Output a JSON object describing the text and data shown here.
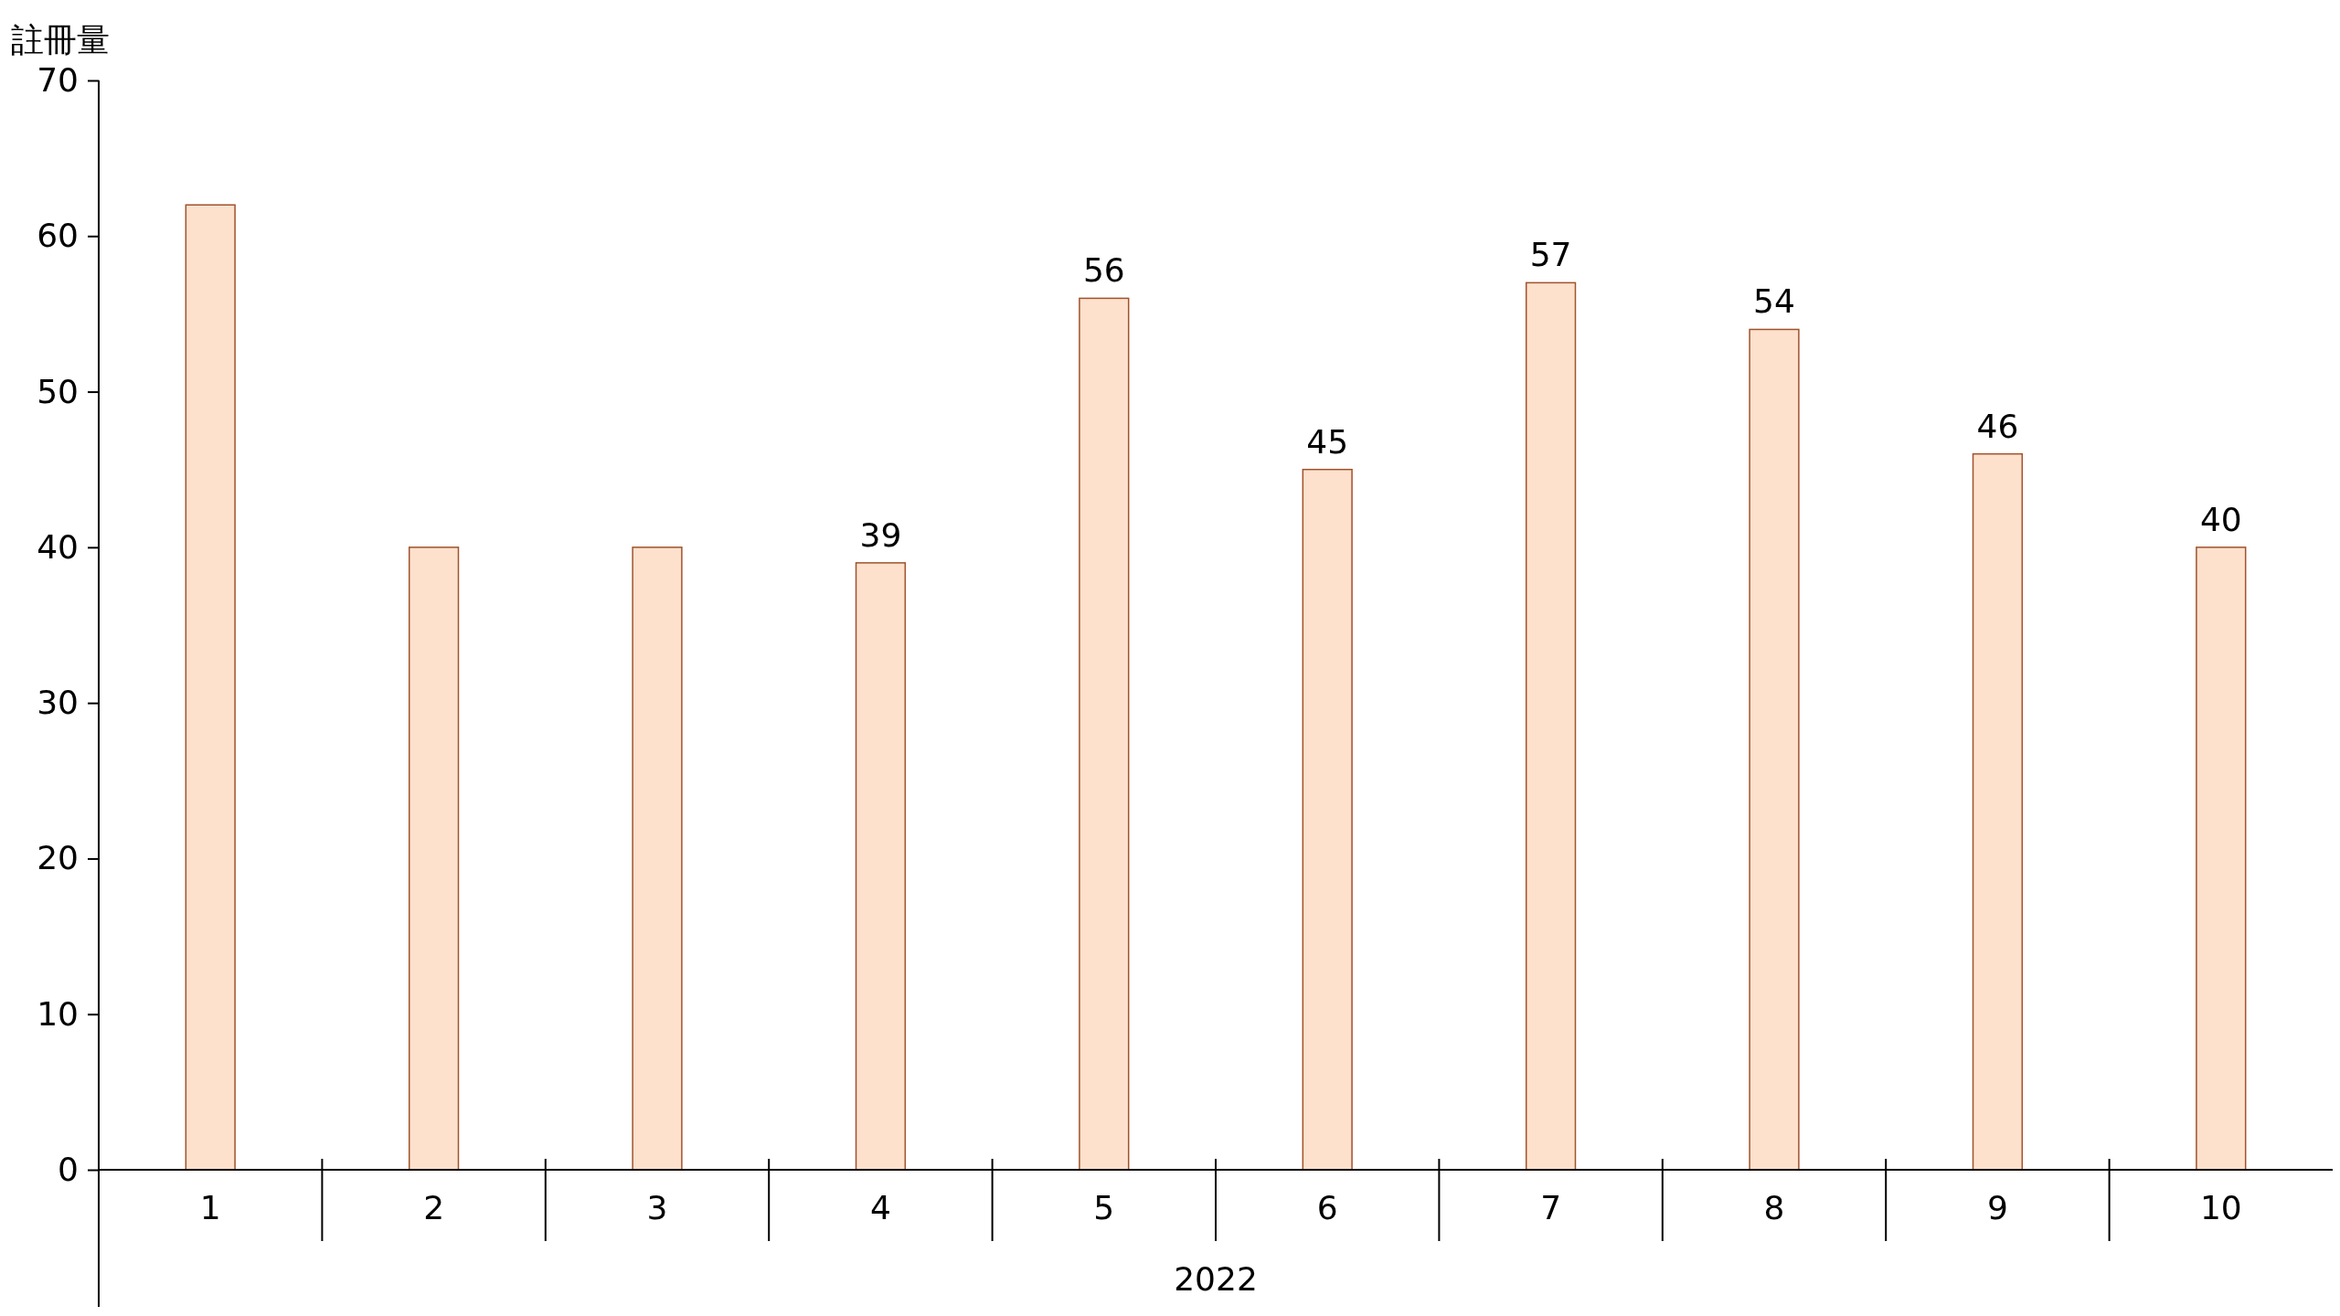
{
  "chart_data": {
    "type": "bar",
    "ylabel": "註冊量",
    "xlabel": "2022",
    "categories": [
      "1",
      "2",
      "3",
      "4",
      "5",
      "6",
      "7",
      "8",
      "9",
      "10"
    ],
    "values": [
      62,
      40,
      40,
      39,
      56,
      45,
      57,
      54,
      46,
      40
    ],
    "value_labels": [
      null,
      null,
      null,
      "39",
      "56",
      "45",
      "57",
      "54",
      "46",
      "40"
    ],
    "color": "#fde1cc",
    "ylim": [
      0,
      70
    ],
    "yticks": [
      0,
      10,
      20,
      30,
      40,
      50,
      60,
      70
    ],
    "grid": false
  }
}
